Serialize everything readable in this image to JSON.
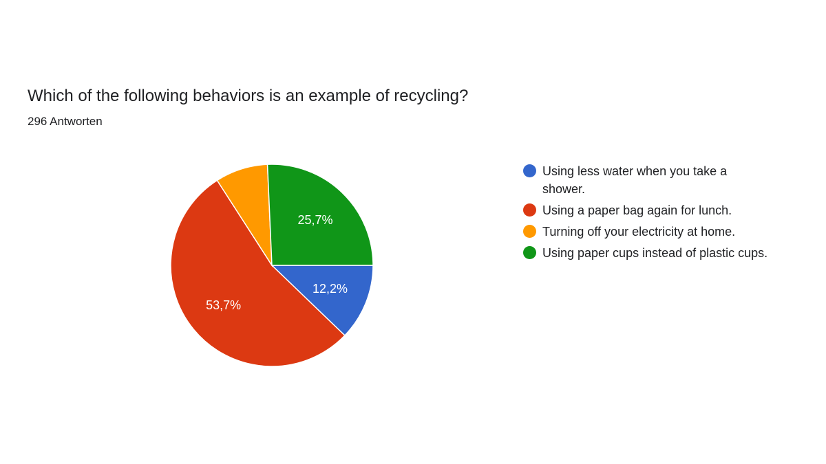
{
  "header": {
    "title": "Which of the following behaviors is an example of recycling?",
    "response_count": "296 Antworten"
  },
  "chart_data": {
    "type": "pie",
    "title": "Which of the following behaviors is an example of recycling?",
    "subtitle": "296 Antworten",
    "legend_position": "right",
    "slices": [
      {
        "label": "Using less water when you take a shower.",
        "value": 12.2,
        "display": "12,2%",
        "color": "#3366cc"
      },
      {
        "label": "Using a paper bag again for lunch.",
        "value": 53.7,
        "display": "53,7%",
        "color": "#dc3912"
      },
      {
        "label": "Turning off your electricity at home.",
        "value": 8.4,
        "display": "",
        "color": "#ff9900"
      },
      {
        "label": "Using paper cups instead of plastic cups.",
        "value": 25.7,
        "display": "25,7%",
        "color": "#109618"
      }
    ]
  }
}
